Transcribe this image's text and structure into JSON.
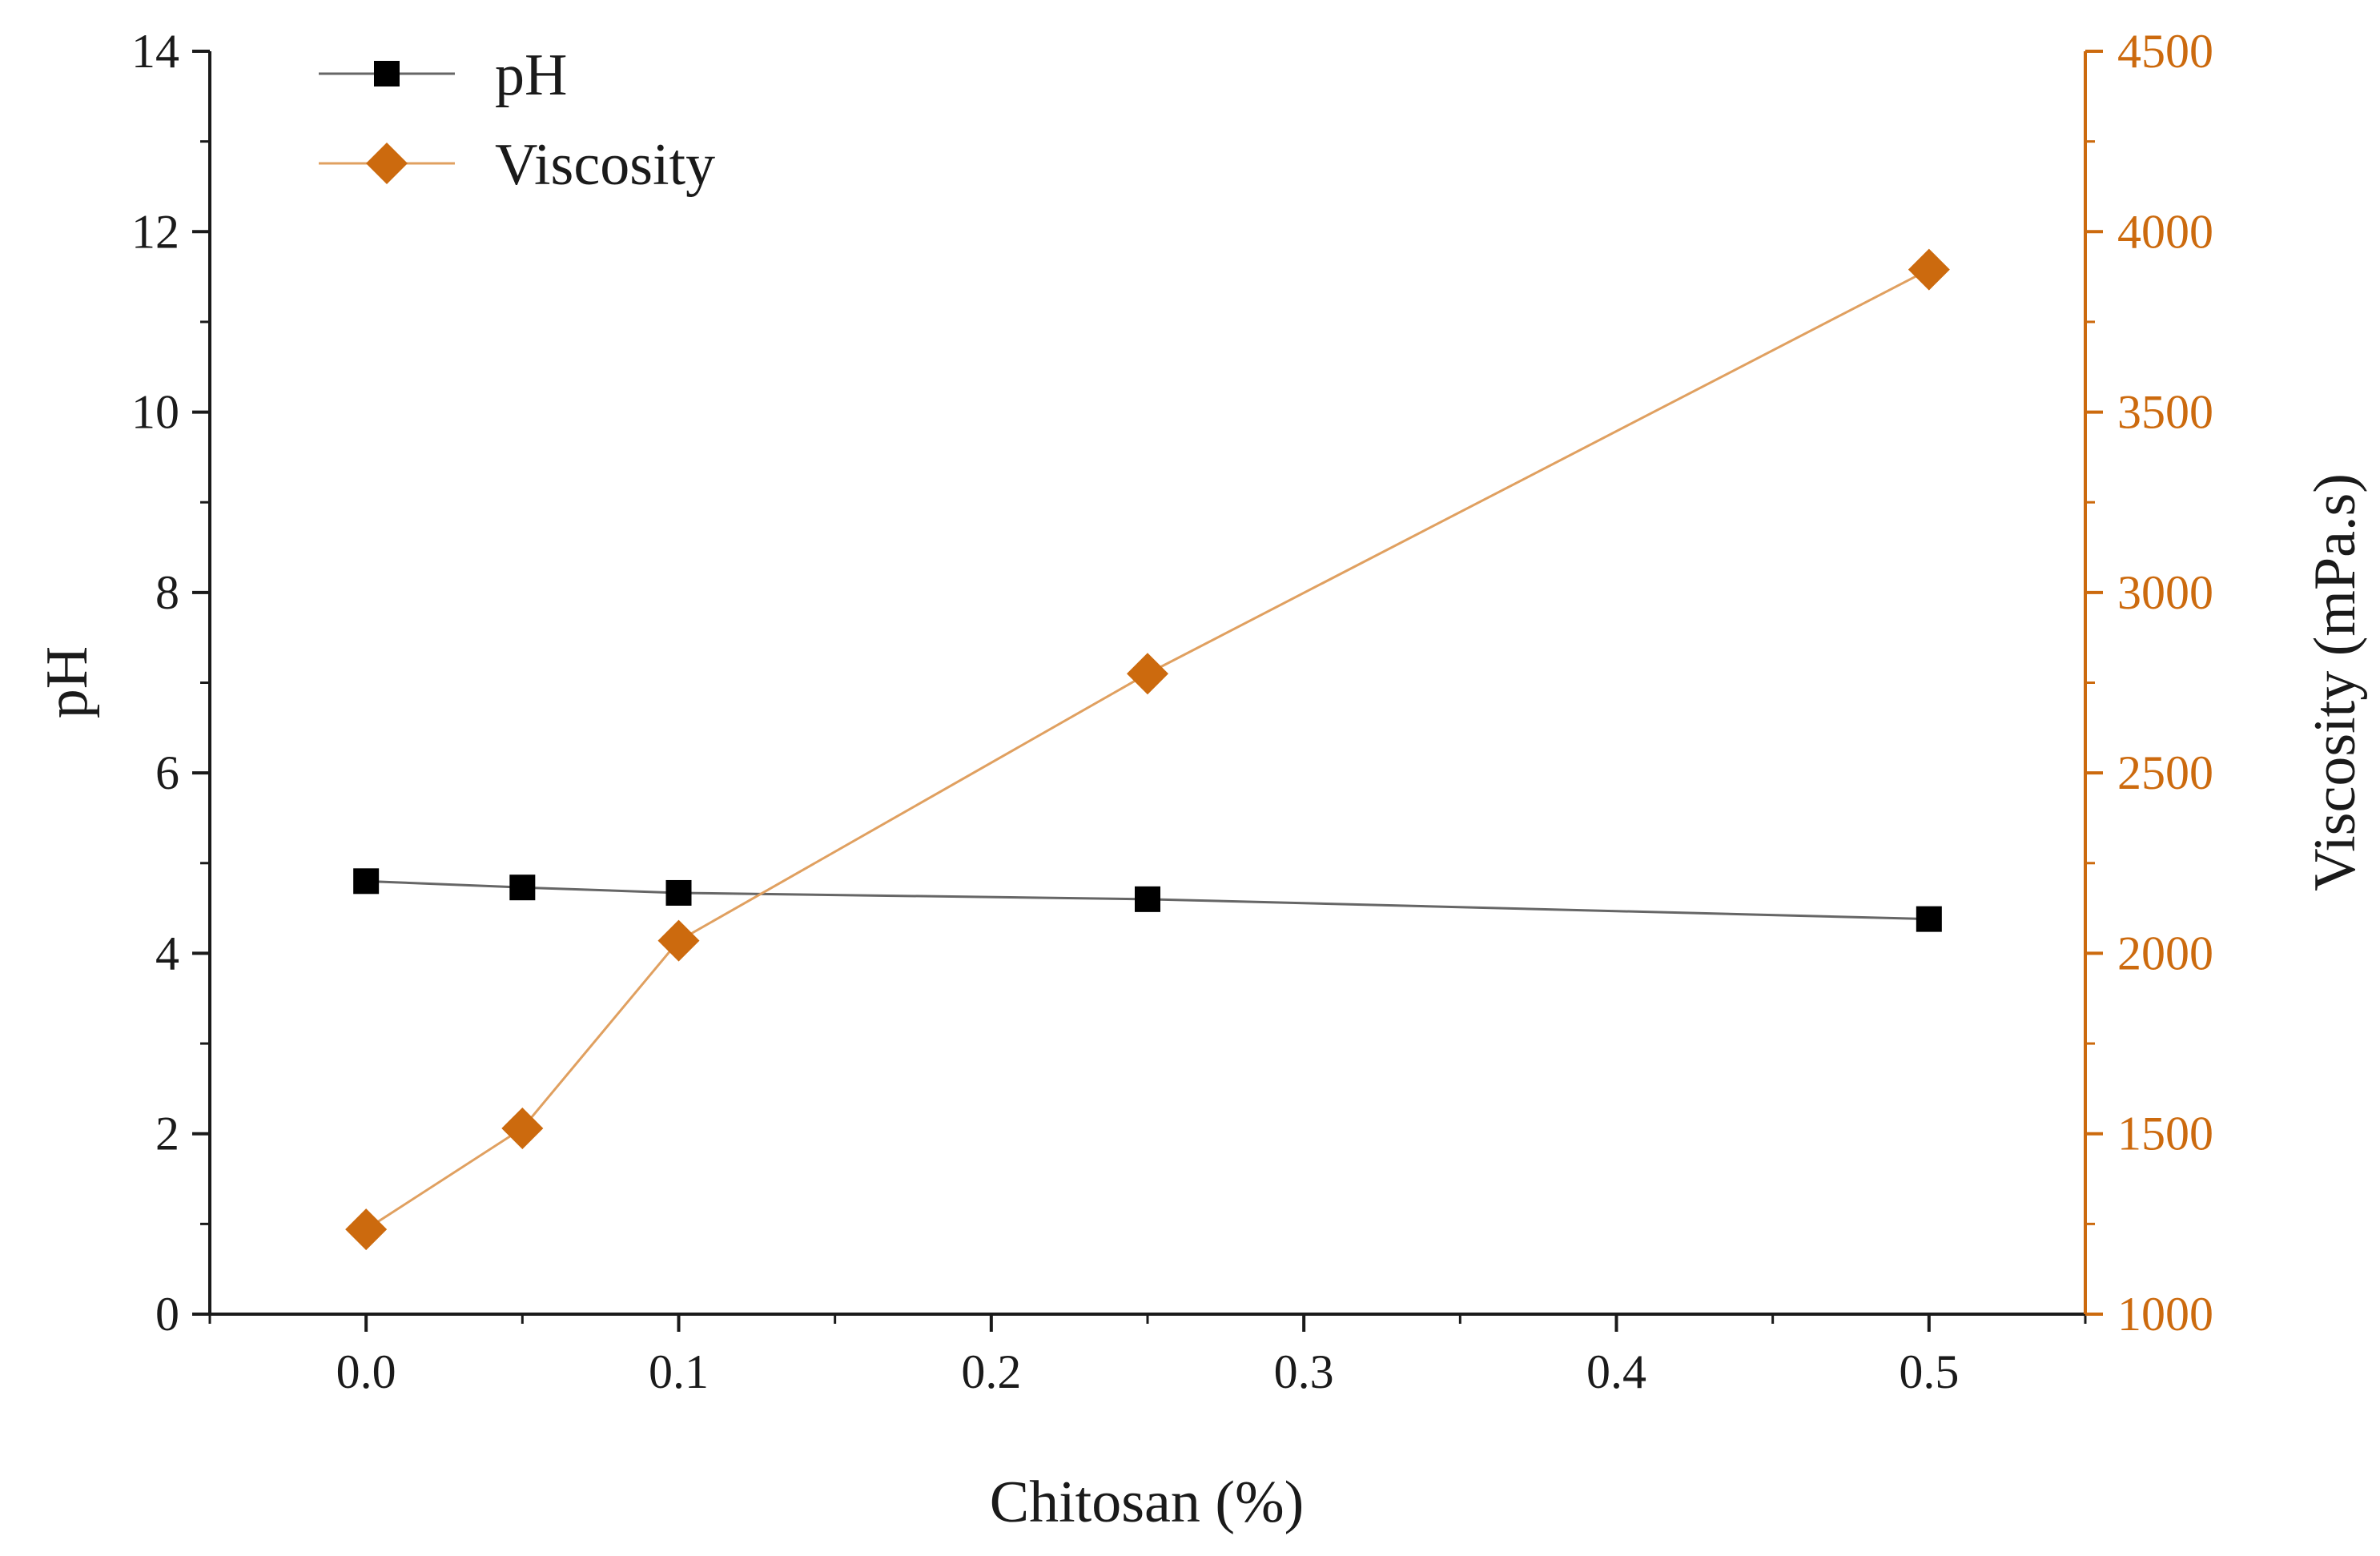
{
  "chart_data": {
    "type": "line",
    "title": "",
    "xlabel": "Chitosan (%)",
    "ylabel": "pH",
    "y2label": "Viscosity (mPa.s)",
    "xlim": [
      -0.05,
      0.55
    ],
    "ylim": [
      0,
      14
    ],
    "y2lim": [
      1000,
      4500
    ],
    "x_ticks": [
      "0.0",
      "0.1",
      "0.2",
      "0.3",
      "0.4",
      "0.5"
    ],
    "y_ticks": [
      "0",
      "2",
      "4",
      "6",
      "8",
      "10",
      "12",
      "14"
    ],
    "y2_ticks": [
      "1000",
      "1500",
      "2000",
      "2500",
      "3000",
      "3500",
      "4000",
      "4500"
    ],
    "grid": false,
    "legend_position": "top-left",
    "series": [
      {
        "name": "pH",
        "axis": "left",
        "marker": "square",
        "color": "#000000",
        "line_color": "#666666",
        "x": [
          0.0,
          0.05,
          0.1,
          0.25,
          0.5
        ],
        "values": [
          4.8,
          4.73,
          4.67,
          4.6,
          4.38
        ]
      },
      {
        "name": "Viscosity",
        "axis": "right",
        "marker": "diamond",
        "color": "#CC6A0E",
        "line_color": "#E0A060",
        "x": [
          0.0,
          0.05,
          0.1,
          0.25,
          0.5
        ],
        "values": [
          1235,
          1515,
          2035,
          2775,
          3895
        ]
      }
    ]
  },
  "colors": {
    "axis_left": "#1a1a1a",
    "axis_right": "#CC6A0E"
  }
}
